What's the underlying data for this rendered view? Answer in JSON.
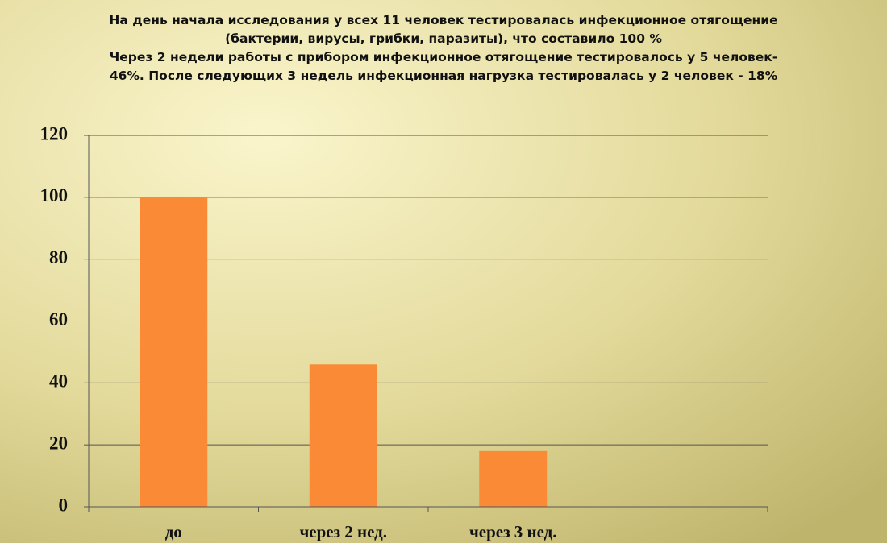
{
  "chart_data": {
    "type": "bar",
    "title": [
      "На  день начала исследования  у всех 11 человек тестировалась инфекционное отягощение",
      "(бактерии, вирусы, грибки, паразиты), что составило 100 %",
      "Через 2 недели работы с прибором  инфекционное отягощение тестировалось у 5 человек-",
      "46%. После следующих 3 недель инфекционная нагрузка тестировалась у 2 человек - 18%"
    ],
    "categories": [
      "до",
      "через 2 нед.",
      "через 3 нед.",
      null
    ],
    "values": [
      100,
      46,
      18,
      null
    ],
    "color": "#fb8a36",
    "ylim": [
      0,
      120
    ],
    "yticks": [
      0,
      20,
      40,
      60,
      80,
      100,
      120
    ],
    "grid": true
  }
}
